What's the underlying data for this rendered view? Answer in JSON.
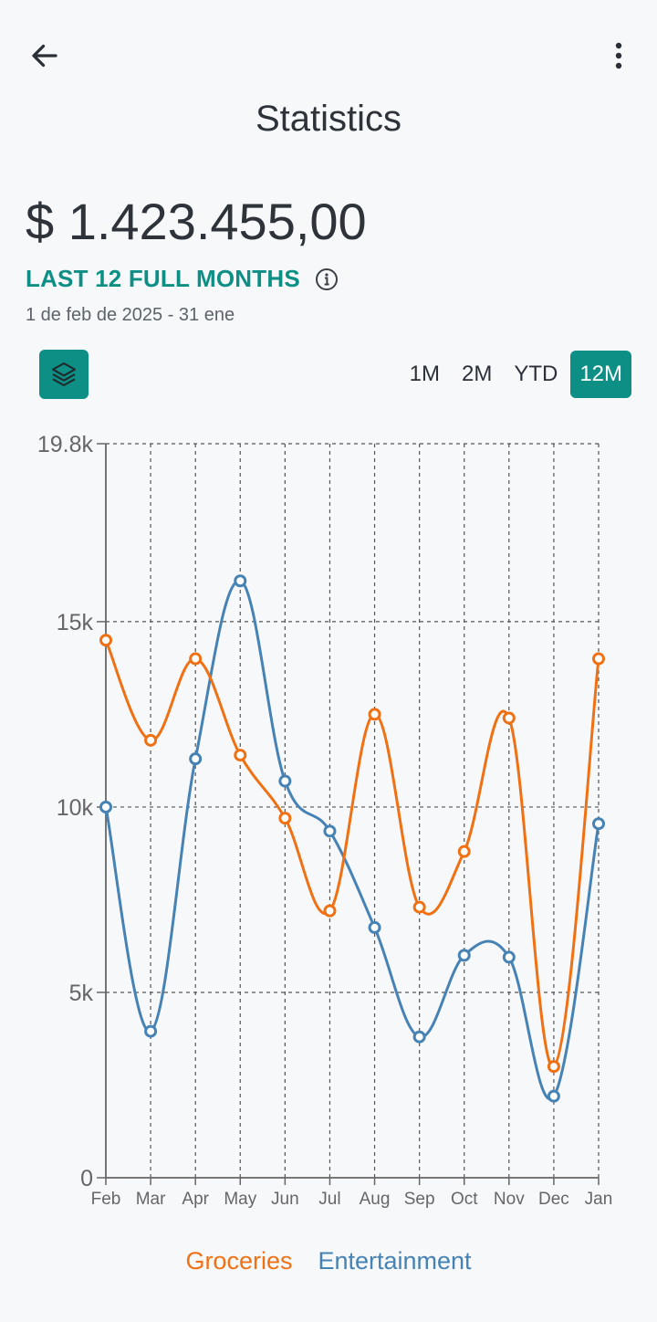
{
  "header": {
    "title": "Statistics",
    "back_icon": "arrow-left-icon",
    "menu_icon": "more-vertical-icon"
  },
  "summary": {
    "total": "$ 1.423.455,00",
    "period_label": "LAST 12 FULL MONTHS",
    "date_range": "1 de feb de 2025 - 31 ene",
    "info_icon": "info-icon"
  },
  "controls": {
    "layers_icon": "layers-icon",
    "ranges": [
      {
        "label": "1M",
        "active": false
      },
      {
        "label": "2M",
        "active": false
      },
      {
        "label": "YTD",
        "active": false
      },
      {
        "label": "12M",
        "active": true
      }
    ]
  },
  "colors": {
    "accent": "#0e8f86",
    "groceries": "#f07014",
    "entertainment": "#4682b4"
  },
  "chart_data": {
    "type": "line",
    "categories": [
      "Feb",
      "Mar",
      "Apr",
      "May",
      "Jun",
      "Jul",
      "Aug",
      "Sep",
      "Oct",
      "Nov",
      "Dec",
      "Jan"
    ],
    "ylim": [
      0,
      19800
    ],
    "yticks": [
      {
        "value": 0,
        "label": "0"
      },
      {
        "value": 5000,
        "label": "5k"
      },
      {
        "value": 10000,
        "label": "10k"
      },
      {
        "value": 15000,
        "label": "15k"
      },
      {
        "value": 19800,
        "label": "19.8k"
      }
    ],
    "grid": true,
    "legend": "bottom-center",
    "series": [
      {
        "name": "Groceries",
        "color": "#f07014",
        "values": [
          14500,
          11800,
          14000,
          11400,
          9700,
          7200,
          12500,
          7300,
          8800,
          12400,
          3000,
          14000
        ]
      },
      {
        "name": "Entertainment",
        "color": "#4682b4",
        "values": [
          10000,
          3950,
          11300,
          16100,
          10700,
          9350,
          6750,
          3800,
          6000,
          5950,
          2200,
          9550
        ]
      }
    ]
  }
}
